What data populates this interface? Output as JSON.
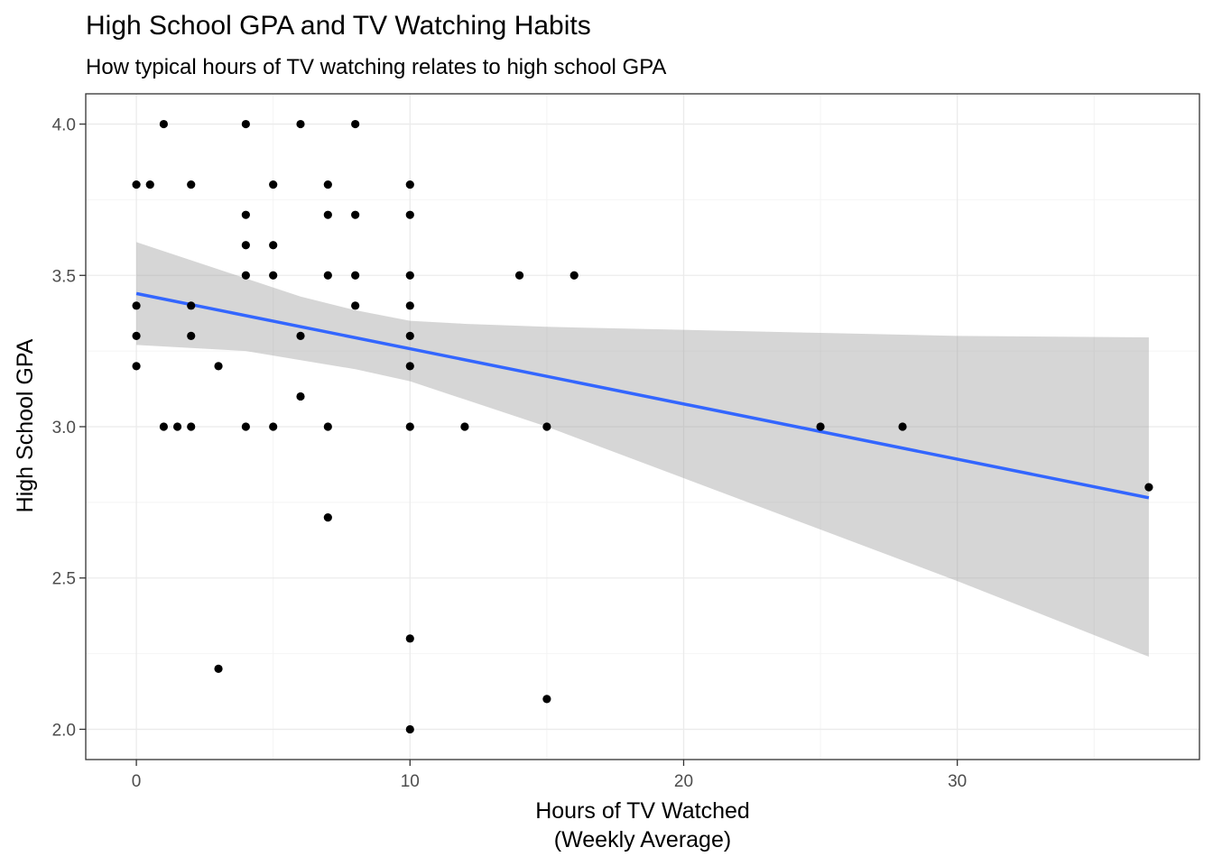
{
  "chart_data": {
    "type": "scatter",
    "title": "High School GPA and TV Watching Habits",
    "subtitle": "How typical hours of TV watching relates to high school GPA",
    "xlabel": [
      "Hours of TV Watched",
      "(Weekly Average)"
    ],
    "ylabel": "High School GPA",
    "xlim": [
      -1.85,
      38.85
    ],
    "ylim": [
      1.9,
      4.1
    ],
    "xticks": [
      0,
      10,
      20,
      30
    ],
    "xtick_labels": [
      "0",
      "10",
      "20",
      "30"
    ],
    "yticks": [
      2.0,
      2.5,
      3.0,
      3.5,
      4.0
    ],
    "ytick_labels": [
      "2.0",
      "2.5",
      "3.0",
      "3.5",
      "4.0"
    ],
    "grid": true,
    "colors": {
      "points": "#000000",
      "fit_line": "#3366FF",
      "ribbon": "#999999",
      "panel_border": "#333333",
      "grid_major": "#ebebeb",
      "grid_minor": "#f4f4f4"
    },
    "points": [
      {
        "x": 0,
        "y": 3.8
      },
      {
        "x": 0,
        "y": 3.4
      },
      {
        "x": 0,
        "y": 3.3
      },
      {
        "x": 0,
        "y": 3.2
      },
      {
        "x": 0.5,
        "y": 3.8
      },
      {
        "x": 1,
        "y": 4.0
      },
      {
        "x": 1,
        "y": 3.0
      },
      {
        "x": 1.5,
        "y": 3.0
      },
      {
        "x": 2,
        "y": 3.8
      },
      {
        "x": 2,
        "y": 3.4
      },
      {
        "x": 2,
        "y": 3.3
      },
      {
        "x": 2,
        "y": 3.0
      },
      {
        "x": 3,
        "y": 3.2
      },
      {
        "x": 3,
        "y": 2.2
      },
      {
        "x": 4,
        "y": 4.0
      },
      {
        "x": 4,
        "y": 3.7
      },
      {
        "x": 4,
        "y": 3.6
      },
      {
        "x": 4,
        "y": 3.5
      },
      {
        "x": 4,
        "y": 3.0
      },
      {
        "x": 5,
        "y": 3.8
      },
      {
        "x": 5,
        "y": 3.6
      },
      {
        "x": 5,
        "y": 3.5
      },
      {
        "x": 5,
        "y": 3.0
      },
      {
        "x": 6,
        "y": 4.0
      },
      {
        "x": 6,
        "y": 3.3
      },
      {
        "x": 6,
        "y": 3.1
      },
      {
        "x": 7,
        "y": 3.8
      },
      {
        "x": 7,
        "y": 3.7
      },
      {
        "x": 7,
        "y": 3.5
      },
      {
        "x": 7,
        "y": 3.0
      },
      {
        "x": 7,
        "y": 2.7
      },
      {
        "x": 8,
        "y": 4.0
      },
      {
        "x": 8,
        "y": 3.7
      },
      {
        "x": 8,
        "y": 3.5
      },
      {
        "x": 8,
        "y": 3.4
      },
      {
        "x": 10,
        "y": 3.8
      },
      {
        "x": 10,
        "y": 3.7
      },
      {
        "x": 10,
        "y": 3.5
      },
      {
        "x": 10,
        "y": 3.4
      },
      {
        "x": 10,
        "y": 3.3
      },
      {
        "x": 10,
        "y": 3.2
      },
      {
        "x": 10,
        "y": 3.0
      },
      {
        "x": 10,
        "y": 2.3
      },
      {
        "x": 10,
        "y": 2.0
      },
      {
        "x": 12,
        "y": 3.0
      },
      {
        "x": 14,
        "y": 3.5
      },
      {
        "x": 15,
        "y": 3.0
      },
      {
        "x": 15,
        "y": 2.1
      },
      {
        "x": 16,
        "y": 3.5
      },
      {
        "x": 25,
        "y": 3.0
      },
      {
        "x": 28,
        "y": 3.0
      },
      {
        "x": 37,
        "y": 2.8
      }
    ],
    "fit_line": {
      "x": [
        0,
        37
      ],
      "y": [
        3.44,
        2.765
      ]
    },
    "confidence_band": [
      {
        "x": 0,
        "low": 3.27,
        "high": 3.61
      },
      {
        "x": 2,
        "low": 3.26,
        "high": 3.55
      },
      {
        "x": 4,
        "low": 3.25,
        "high": 3.49
      },
      {
        "x": 6,
        "low": 3.22,
        "high": 3.43
      },
      {
        "x": 8,
        "low": 3.19,
        "high": 3.385
      },
      {
        "x": 10,
        "low": 3.15,
        "high": 3.35
      },
      {
        "x": 12,
        "low": 3.09,
        "high": 3.34
      },
      {
        "x": 15,
        "low": 3.0,
        "high": 3.33
      },
      {
        "x": 20,
        "low": 2.83,
        "high": 3.32
      },
      {
        "x": 25,
        "low": 2.66,
        "high": 3.31
      },
      {
        "x": 30,
        "low": 2.49,
        "high": 3.3
      },
      {
        "x": 37,
        "low": 2.24,
        "high": 3.295
      }
    ]
  }
}
